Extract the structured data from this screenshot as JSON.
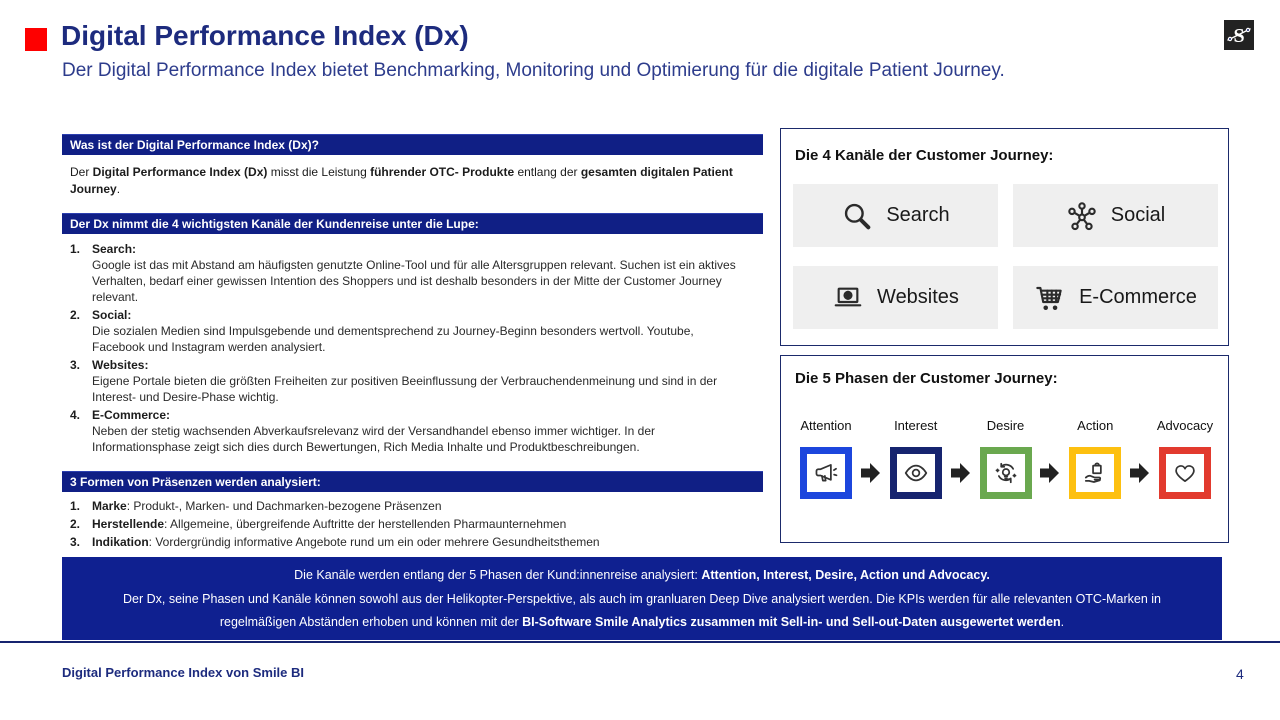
{
  "slide": {
    "title": "Digital Performance Index (Dx)",
    "subtitle": "Der Digital Performance Index bietet Benchmarking, Monitoring und Optimierung für die digitale Patient Journey.",
    "logo_letter": "S",
    "footer": "Digital Performance Index von Smile BI",
    "page_number": "4"
  },
  "colors": {
    "accent_red": "#fe0000",
    "navy_title": "#1d2b7e",
    "navy_bar": "#101f85",
    "banner_blue": "#0f2090",
    "tile_gray": "#efefef",
    "arrow_gray": "#cbcbcb"
  },
  "left": {
    "section1": {
      "header": "Was ist der Digital Performance Index (Dx)?",
      "paragraph_segments": [
        {
          "text": "Der ",
          "bold": false
        },
        {
          "text": "Digital Performance Index (Dx)",
          "bold": true
        },
        {
          "text": " misst die Leistung ",
          "bold": false
        },
        {
          "text": "führender OTC- Produkte",
          "bold": true
        },
        {
          "text": " entlang der ",
          "bold": false
        },
        {
          "text": "gesamten digitalen Patient Journey",
          "bold": true
        },
        {
          "text": ".",
          "bold": false
        }
      ]
    },
    "section2": {
      "header": "Der Dx nimmt die 4 wichtigsten Kanäle der Kundenreise unter die Lupe:",
      "items": [
        {
          "num": "1.",
          "label": "Search:",
          "text": "Google ist das mit Abstand am häufigsten genutzte Online-Tool und für alle Altersgruppen relevant. Suchen ist ein aktives Verhalten, bedarf einer gewissen Intention des Shoppers und ist deshalb besonders in der Mitte der Customer Journey relevant."
        },
        {
          "num": "2.",
          "label": "Social:",
          "text": "Die sozialen Medien sind Impulsgebende und dementsprechend zu Journey-Beginn besonders wertvoll. Youtube, Facebook und Instagram werden analysiert."
        },
        {
          "num": "3.",
          "label": "Websites:",
          "text": "Eigene Portale bieten die größten Freiheiten zur positiven Beeinflussung der Verbrauchendenmeinung und sind in der Interest- und Desire-Phase wichtig."
        },
        {
          "num": "4.",
          "label": "E-Commerce:",
          "text": "Neben der stetig wachsenden Abverkaufsrelevanz wird der Versandhandel ebenso immer wichtiger. In der Informationsphase zeigt sich dies durch Bewertungen, Rich Media Inhalte und Produktbeschreibungen."
        }
      ]
    },
    "section3": {
      "header": "3 Formen von Präsenzen werden analysiert:",
      "items": [
        {
          "num": "1.",
          "label": "Marke",
          "text": ": Produkt-, Marken- und Dachmarken-bezogene Präsenzen"
        },
        {
          "num": "2.",
          "label": "Herstellende",
          "text": ": Allgemeine, übergreifende Auftritte der herstellenden Pharmaunternehmen"
        },
        {
          "num": "3.",
          "label": "Indikation",
          "text": ": Vordergründig informative Angebote rund um ein oder mehrere Gesundheitsthemen"
        }
      ]
    }
  },
  "channels_box": {
    "title": "Die 4 Kanäle der Customer Journey:",
    "tiles": [
      {
        "icon": "search-icon",
        "label": "Search"
      },
      {
        "icon": "social-network-icon",
        "label": "Social"
      },
      {
        "icon": "laptop-globe-icon",
        "label": "Websites"
      },
      {
        "icon": "shopping-cart-icon",
        "label": "E-Commerce"
      }
    ]
  },
  "phases_box": {
    "title": "Die 5 Phasen der Customer Journey:",
    "phases": [
      {
        "label": "Attention",
        "icon": "megaphone-icon",
        "color": "#1c46dd"
      },
      {
        "label": "Interest",
        "icon": "eye-icon",
        "color": "#16246f"
      },
      {
        "label": "Desire",
        "icon": "idea-bulb-icon",
        "color": "#6aa84f"
      },
      {
        "label": "Action",
        "icon": "purchase-hand-icon",
        "color": "#fdc010"
      },
      {
        "label": "Advocacy",
        "icon": "heart-icon",
        "color": "#e23a2e"
      }
    ]
  },
  "banner": {
    "line1_segments": [
      {
        "text": "Die Kanäle werden entlang der 5 Phasen der Kund:innenreise analysiert: ",
        "bold": false
      },
      {
        "text": "Attention, Interest, Desire, Action und Advocacy.",
        "bold": true
      }
    ],
    "line2": "Der Dx, seine Phasen und Kanäle können sowohl aus der Helikopter-Perspektive, als auch im granluaren Deep Dive analysiert werden. Die KPIs werden für alle relevanten OTC-Marken in",
    "line3_segments": [
      {
        "text": "regelmäßigen Abständen erhoben und können mit der ",
        "bold": false
      },
      {
        "text": "BI-Software Smile Analytics zusammen mit Sell-in- und Sell-out-Daten ausgewertet werden",
        "bold": true
      },
      {
        "text": ".",
        "bold": false
      }
    ]
  }
}
